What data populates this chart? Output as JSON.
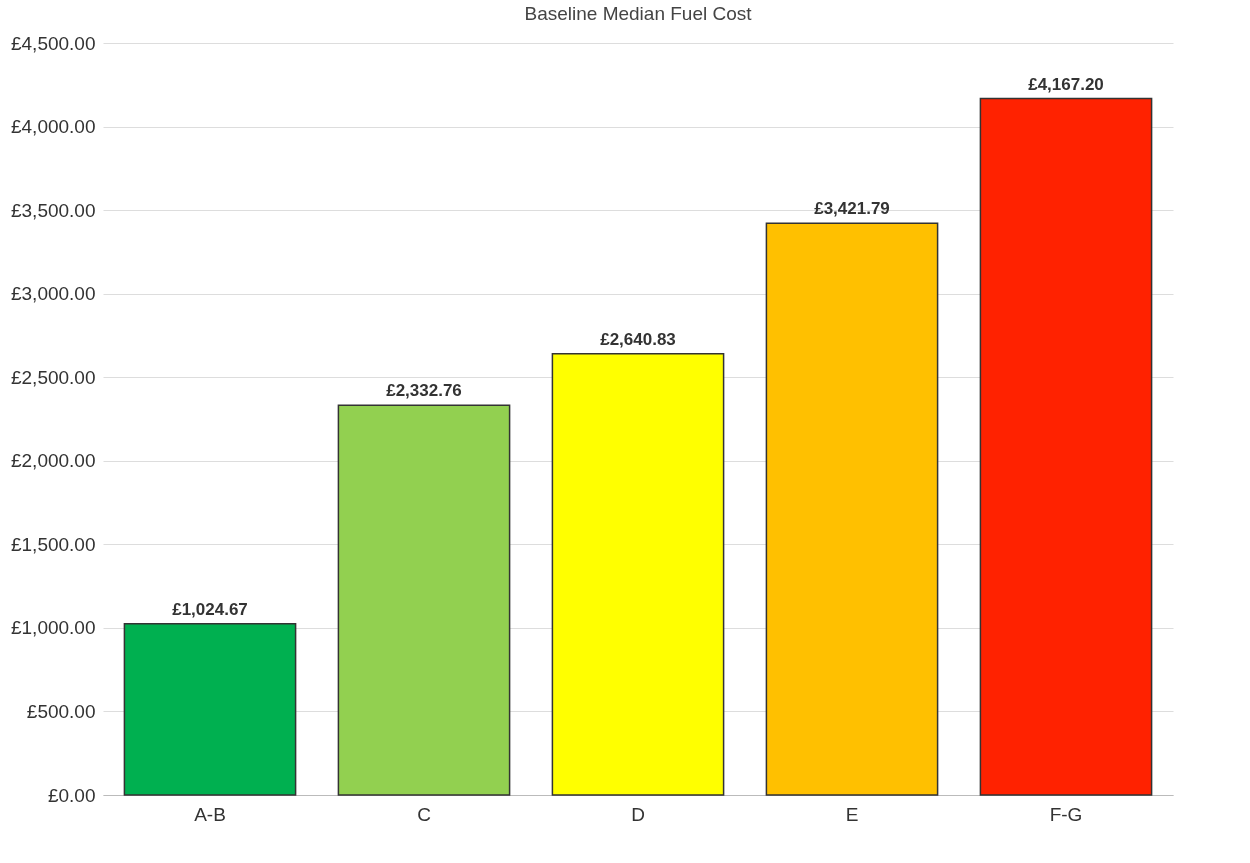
{
  "chart_data": {
    "type": "bar",
    "title": "Baseline Median Fuel Cost",
    "categories": [
      "A-B",
      "C",
      "D",
      "E",
      "F-G"
    ],
    "values": [
      1024.67,
      2332.76,
      2640.83,
      3421.79,
      4167.2
    ],
    "colors": [
      "#00b050",
      "#92d050",
      "#ffff00",
      "#ffc000",
      "#ff2200"
    ],
    "value_labels": [
      "£1,024.67",
      "£2,332.76",
      "£2,640.83",
      "£3,421.79",
      "£4,167.20"
    ],
    "ylim": [
      0,
      4500
    ],
    "yticks": [
      {
        "value": 0,
        "label": "£0.00"
      },
      {
        "value": 500,
        "label": "£500.00"
      },
      {
        "value": 1000,
        "label": "£1,000.00"
      },
      {
        "value": 1500,
        "label": "£1,500.00"
      },
      {
        "value": 2000,
        "label": "£2,000.00"
      },
      {
        "value": 2500,
        "label": "£2,500.00"
      },
      {
        "value": 3000,
        "label": "£3,000.00"
      },
      {
        "value": 3500,
        "label": "£3,500.00"
      },
      {
        "value": 4000,
        "label": "£4,000.00"
      },
      {
        "value": 4500,
        "label": "£4,500.00"
      }
    ],
    "grid": "y"
  }
}
